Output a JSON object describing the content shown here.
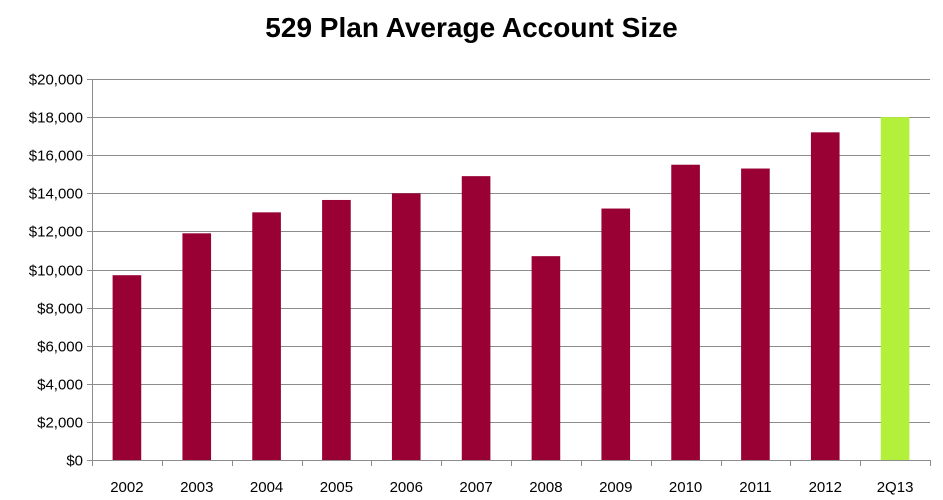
{
  "chart_data": {
    "type": "bar",
    "title": "529 Plan Average Account Size",
    "xlabel": "",
    "ylabel": "",
    "categories": [
      "2002",
      "2003",
      "2004",
      "2005",
      "2006",
      "2007",
      "2008",
      "2009",
      "2010",
      "2011",
      "2012",
      "2Q13"
    ],
    "values": [
      9700,
      11900,
      13000,
      13650,
      14000,
      14900,
      10700,
      13200,
      15500,
      15300,
      17200,
      18000
    ],
    "bar_colors": [
      "#990033",
      "#990033",
      "#990033",
      "#990033",
      "#990033",
      "#990033",
      "#990033",
      "#990033",
      "#990033",
      "#990033",
      "#990033",
      "#b3f03c"
    ],
    "ylim": [
      0,
      20000
    ],
    "yticks": [
      0,
      2000,
      4000,
      6000,
      8000,
      10000,
      12000,
      14000,
      16000,
      18000,
      20000
    ],
    "ytick_labels": [
      "$0",
      "$2,000",
      "$4,000",
      "$6,000",
      "$8,000",
      "$10,000",
      "$12,000",
      "$14,000",
      "$16,000",
      "$18,000",
      "$20,000"
    ],
    "grid": true,
    "legend": "none"
  }
}
